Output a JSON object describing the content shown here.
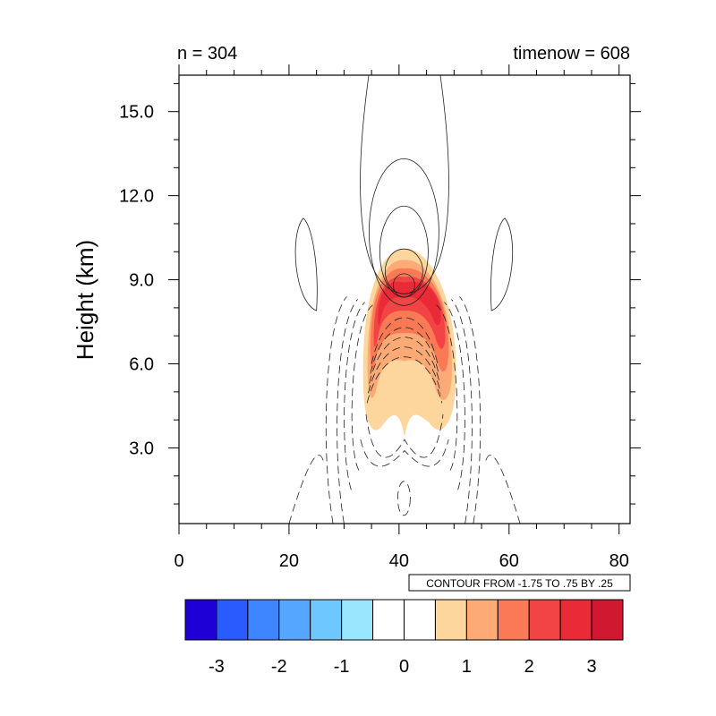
{
  "chart_data": {
    "type": "contour",
    "left_title": "n = 304",
    "right_title": "timenow = 608",
    "ylabel": "Height (km)",
    "xlabel": "",
    "xlim": [
      0,
      82
    ],
    "ylim": [
      0.3,
      16.3
    ],
    "x_ticks": [
      0,
      20,
      40,
      60,
      80
    ],
    "x_tick_labels": [
      "0",
      "20",
      "40",
      "60",
      "80"
    ],
    "y_ticks": [
      3,
      6,
      9,
      12,
      15
    ],
    "y_tick_labels": [
      "3.0",
      "6.0",
      "9.0",
      "12.0",
      "15.0"
    ],
    "contour_info": "CONTOUR FROM -1.75 TO .75 BY .25",
    "colorbar": {
      "colors": [
        "#1E00D6",
        "#2A5BFF",
        "#3E86FF",
        "#55A6FF",
        "#6DC8FF",
        "#99E6FF",
        "#FFFFFF",
        "#FFFFFF",
        "#FDD69E",
        "#FDAA76",
        "#FA7A55",
        "#F24444",
        "#EA2A36",
        "#D01830"
      ],
      "tick_values": [
        -3,
        -2,
        -1,
        0,
        1,
        2,
        3
      ],
      "tick_labels": [
        "-3",
        "-2",
        "-1",
        "0",
        "1",
        "2",
        "3"
      ]
    },
    "shaded_field": {
      "center_x": 41,
      "shading": [
        {
          "level_min": 0.5,
          "color": "#FDD69E"
        },
        {
          "level_min": 1.0,
          "color": "#FDAA76"
        },
        {
          "level_min": 1.5,
          "color": "#FA7A55"
        },
        {
          "level_min": 2.0,
          "color": "#F24444"
        },
        {
          "level_min": 2.5,
          "color": "#EA2A36"
        }
      ]
    }
  }
}
